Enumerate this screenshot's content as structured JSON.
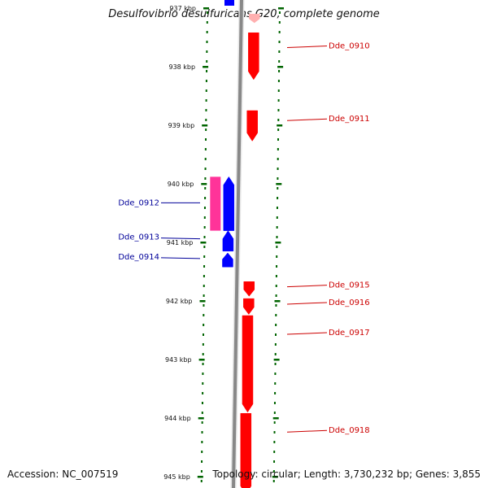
{
  "title": "Desulfovibrio desulfuricans G20, complete genome",
  "footer": {
    "accession": "Accession: NC_007519",
    "summary": "Topology: circular; Length: 3,730,232 bp; Genes: 3,855"
  },
  "colors": {
    "forward_gene": "#ff0000",
    "forward_gene_faded": "#ffb0b0",
    "reverse_gene": "#0000ff",
    "rna_feature": "#ff3399",
    "backbone": "#888888",
    "tick": "#006400",
    "forward_label": "#cc0000",
    "reverse_label": "#000099"
  },
  "scale": {
    "unit": "kbp",
    "ticks": [
      {
        "kbp": 937,
        "label": "937 kbp"
      },
      {
        "kbp": 938,
        "label": "938 kbp"
      },
      {
        "kbp": 939,
        "label": "939 kbp"
      },
      {
        "kbp": 940,
        "label": "940 kbp"
      },
      {
        "kbp": 941,
        "label": "941 kbp"
      },
      {
        "kbp": 942,
        "label": "942 kbp"
      },
      {
        "kbp": 943,
        "label": "943 kbp"
      },
      {
        "kbp": 944,
        "label": "944 kbp"
      },
      {
        "kbp": 945,
        "label": "945 kbp"
      }
    ]
  },
  "features": [
    {
      "label": "",
      "strand": "+",
      "start_kbp": 937.1,
      "end_kbp": 937.25,
      "faded": true
    },
    {
      "label": "Dde_0910",
      "strand": "+",
      "start_kbp": 937.42,
      "end_kbp": 938.22
    },
    {
      "label": "Dde_0911",
      "strand": "+",
      "start_kbp": 938.75,
      "end_kbp": 939.27
    },
    {
      "label": "Dde_0912",
      "strand": "rna",
      "start_kbp": 939.88,
      "end_kbp": 940.8
    },
    {
      "label": "",
      "strand": "-",
      "start_kbp": 939.88,
      "end_kbp": 940.8
    },
    {
      "label": "Dde_0913",
      "strand": "-",
      "start_kbp": 940.8,
      "end_kbp": 941.15
    },
    {
      "label": "Dde_0914",
      "strand": "-",
      "start_kbp": 941.18,
      "end_kbp": 941.42
    },
    {
      "label": "Dde_0915",
      "strand": "+",
      "start_kbp": 941.67,
      "end_kbp": 941.92
    },
    {
      "label": "Dde_0916",
      "strand": "+",
      "start_kbp": 941.96,
      "end_kbp": 942.23
    },
    {
      "label": "Dde_0917",
      "strand": "+",
      "start_kbp": 942.25,
      "end_kbp": 943.9
    },
    {
      "label": "Dde_0918",
      "strand": "+",
      "start_kbp": 943.92,
      "end_kbp": 945.3
    }
  ]
}
